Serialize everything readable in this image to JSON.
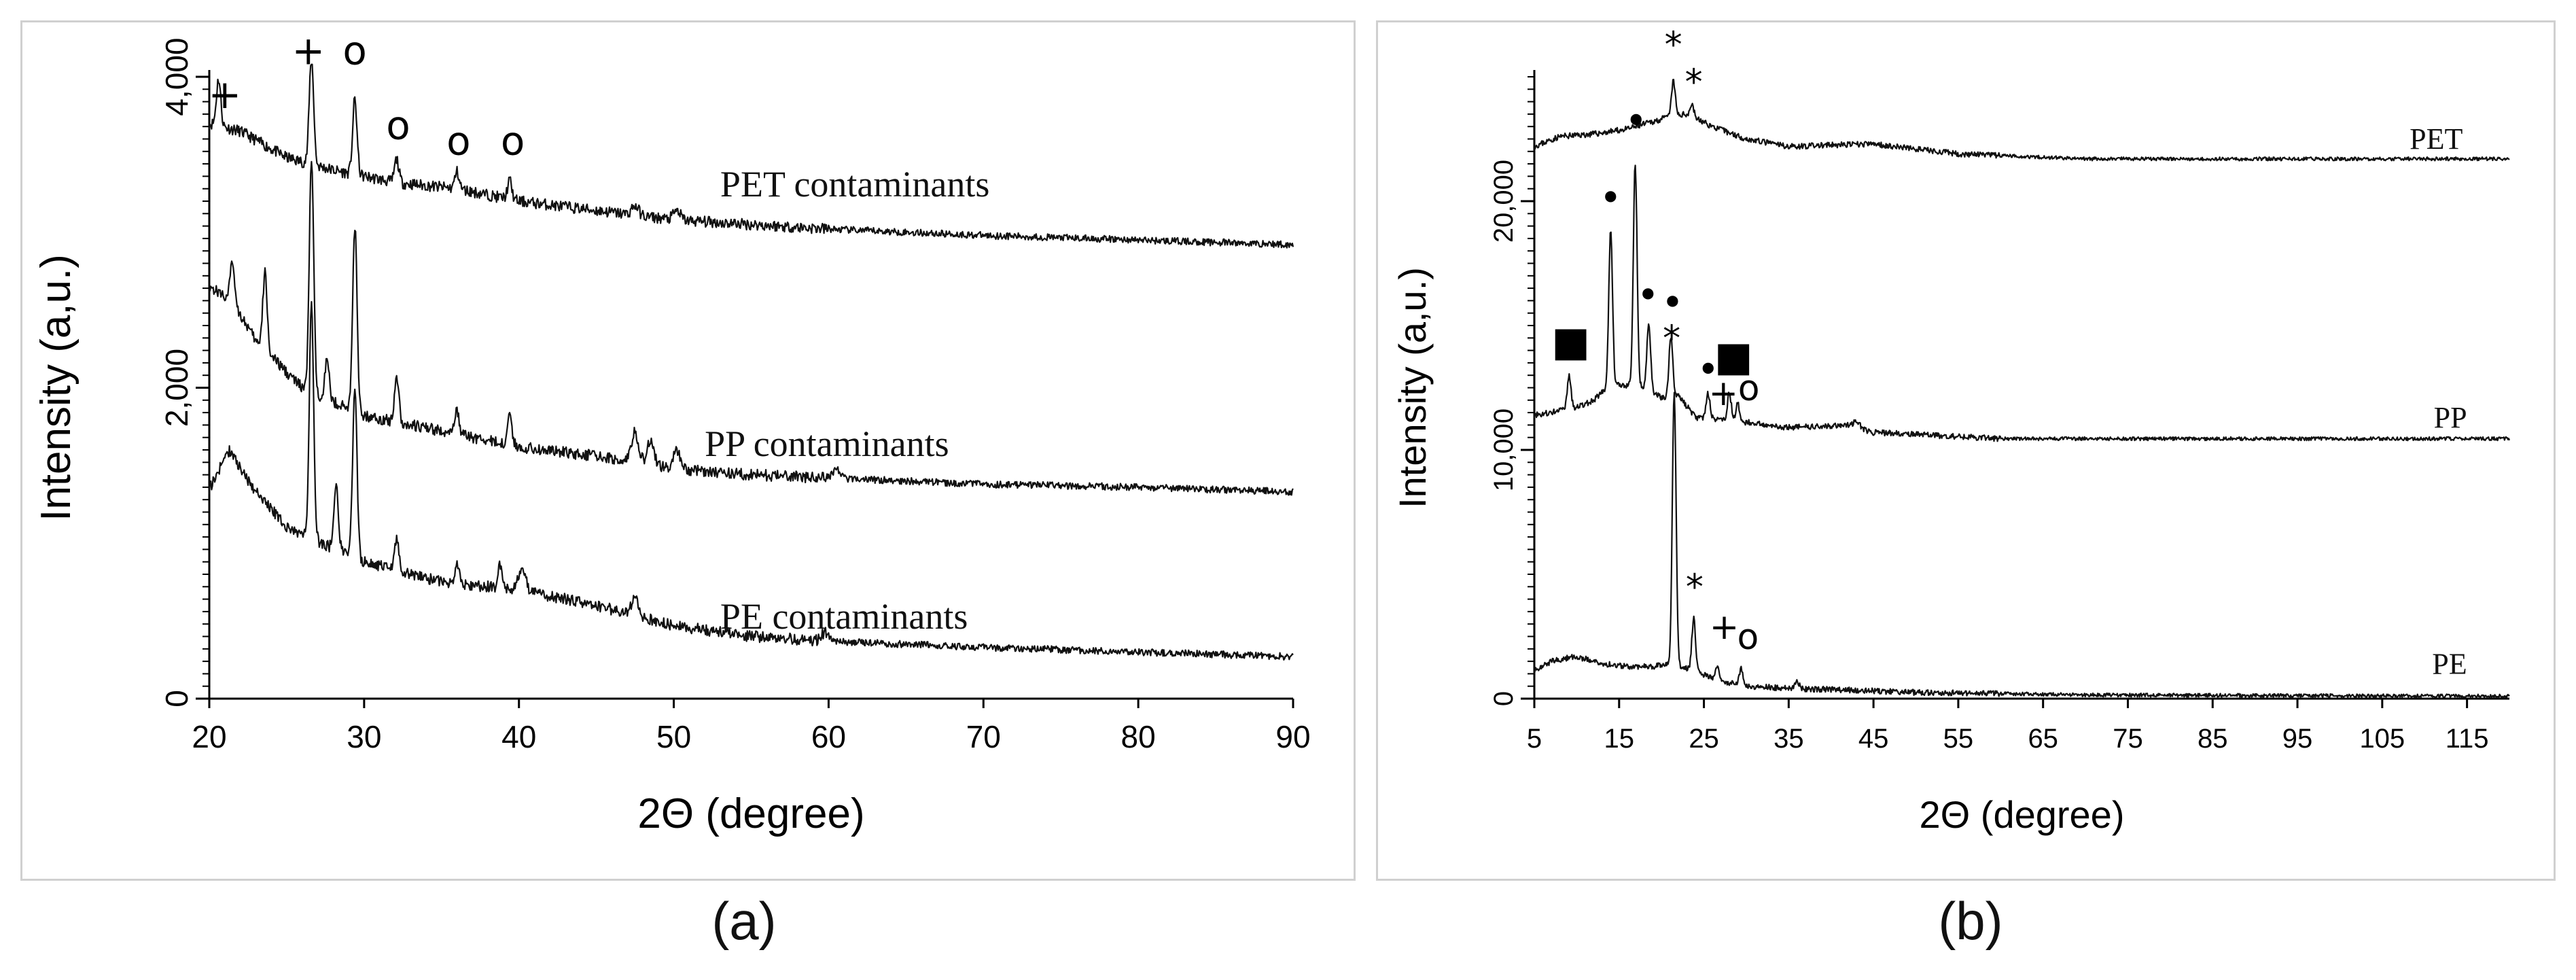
{
  "captions": [
    "(a)",
    "(b)"
  ],
  "chart_data": [
    {
      "type": "line",
      "panel": "a",
      "xlabel": "2Θ (degree)",
      "ylabel": "Intensity (a,u.)",
      "xlim": [
        20,
        90
      ],
      "ylim": [
        0,
        4000
      ],
      "xticks": [
        "20",
        "30",
        "40",
        "50",
        "60",
        "70",
        "80",
        "90"
      ],
      "yticks": [
        "0",
        "2,000",
        "4,000"
      ],
      "series": [
        {
          "name": "PET contaminants",
          "baseline": [
            [
              20,
              3700
            ],
            [
              22,
              3650
            ],
            [
              25,
              3480
            ],
            [
              28,
              3400
            ],
            [
              32,
              3320
            ],
            [
              36,
              3280
            ],
            [
              40,
              3200
            ],
            [
              45,
              3140
            ],
            [
              50,
              3080
            ],
            [
              60,
              3020
            ],
            [
              70,
              2980
            ],
            [
              80,
              2950
            ],
            [
              90,
              2920
            ]
          ],
          "peaks": [
            [
              20.6,
              300
            ],
            [
              26.6,
              700
            ],
            [
              29.4,
              480
            ],
            [
              32.1,
              150
            ],
            [
              36.0,
              110
            ],
            [
              39.4,
              120
            ],
            [
              47.5,
              60
            ],
            [
              50.2,
              60
            ]
          ],
          "label_at": [
            53,
            3230
          ]
        },
        {
          "name": "PP contaminants",
          "baseline": [
            [
              20,
              2650
            ],
            [
              21.5,
              2560
            ],
            [
              23,
              2300
            ],
            [
              26,
              2000
            ],
            [
              30,
              1820
            ],
            [
              35,
              1720
            ],
            [
              40,
              1620
            ],
            [
              45,
              1560
            ],
            [
              50,
              1480
            ],
            [
              55,
              1440
            ],
            [
              60,
              1420
            ],
            [
              70,
              1380
            ],
            [
              80,
              1360
            ],
            [
              90,
              1330
            ]
          ],
          "peaks": [
            [
              21.5,
              250
            ],
            [
              23.6,
              500
            ],
            [
              26.6,
              1500
            ],
            [
              27.6,
              250
            ],
            [
              29.4,
              1200
            ],
            [
              32.1,
              300
            ],
            [
              36.0,
              150
            ],
            [
              39.4,
              200
            ],
            [
              47.5,
              200
            ],
            [
              48.5,
              150
            ],
            [
              50.2,
              120
            ],
            [
              60.5,
              60
            ]
          ],
          "label_at": [
            52,
            1560
          ]
        },
        {
          "name": "PE contaminants",
          "baseline": [
            [
              20,
              1350
            ],
            [
              21.3,
              1600
            ],
            [
              22.5,
              1400
            ],
            [
              25,
              1100
            ],
            [
              30,
              880
            ],
            [
              35,
              750
            ],
            [
              40,
              700
            ],
            [
              45,
              600
            ],
            [
              50,
              470
            ],
            [
              55,
              400
            ],
            [
              60,
              370
            ],
            [
              70,
              330
            ],
            [
              80,
              300
            ],
            [
              90,
              270
            ]
          ],
          "peaks": [
            [
              26.6,
              1500
            ],
            [
              28.2,
              400
            ],
            [
              29.4,
              1100
            ],
            [
              32.1,
              200
            ],
            [
              36.0,
              130
            ],
            [
              38.8,
              150
            ],
            [
              40.2,
              150
            ],
            [
              47.5,
              120
            ],
            [
              59.8,
              60
            ]
          ],
          "label_at": [
            53,
            450
          ]
        }
      ],
      "annotations": [
        {
          "text": "+",
          "x": 21.0,
          "y": 3800
        },
        {
          "text": "+",
          "x": 26.4,
          "y": 4080
        },
        {
          "text": "o",
          "x": 29.4,
          "y": 4080
        },
        {
          "text": "o",
          "x": 32.2,
          "y": 3600
        },
        {
          "text": "o",
          "x": 36.1,
          "y": 3500
        },
        {
          "text": "o",
          "x": 39.6,
          "y": 3500
        }
      ]
    },
    {
      "type": "line",
      "panel": "b",
      "xlabel": "2Θ (degree)",
      "ylabel": "Intensity (a,u.)",
      "xlim": [
        5,
        120
      ],
      "ylim": [
        0,
        25000
      ],
      "xticks": [
        "5",
        "15",
        "25",
        "35",
        "45",
        "55",
        "65",
        "75",
        "85",
        "95",
        "105",
        "115"
      ],
      "yticks": [
        "0",
        "10,000",
        "20,000"
      ],
      "series": [
        {
          "name": "PET",
          "baseline": [
            [
              5,
              22200
            ],
            [
              8,
              22600
            ],
            [
              12,
              22700
            ],
            [
              16,
              22900
            ],
            [
              19,
              23200
            ],
            [
              21,
              23400
            ],
            [
              23,
              23500
            ],
            [
              26,
              23000
            ],
            [
              30,
              22500
            ],
            [
              35,
              22200
            ],
            [
              45,
              22300
            ],
            [
              55,
              21900
            ],
            [
              70,
              21700
            ],
            [
              90,
              21700
            ],
            [
              120,
              21700
            ]
          ],
          "peaks": [
            [
              21.4,
              1400
            ],
            [
              23.6,
              500
            ]
          ],
          "label_at": [
            114.5,
            22100
          ]
        },
        {
          "name": "PP",
          "baseline": [
            [
              5,
              11400
            ],
            [
              10,
              11700
            ],
            [
              12,
              12000
            ],
            [
              14,
              12600
            ],
            [
              16,
              12600
            ],
            [
              18,
              12500
            ],
            [
              20,
              12100
            ],
            [
              22,
              12200
            ],
            [
              24,
              11300
            ],
            [
              28,
              11200
            ],
            [
              35,
              10900
            ],
            [
              42,
              11000
            ],
            [
              45,
              10700
            ],
            [
              60,
              10450
            ],
            [
              80,
              10450
            ],
            [
              120,
              10450
            ]
          ],
          "peaks": [
            [
              9.1,
              1300
            ],
            [
              14.0,
              6200
            ],
            [
              16.9,
              9000
            ],
            [
              18.5,
              2700
            ],
            [
              21.1,
              2400
            ],
            [
              25.5,
              1000
            ],
            [
              28.0,
              1100
            ],
            [
              29.0,
              700
            ],
            [
              43.0,
              250
            ]
          ],
          "label_at": [
            115,
            10900
          ]
        },
        {
          "name": "PE",
          "baseline": [
            [
              5,
              1100
            ],
            [
              7,
              1500
            ],
            [
              10,
              1700
            ],
            [
              13,
              1400
            ],
            [
              16,
              1300
            ],
            [
              19,
              1300
            ],
            [
              21,
              1400
            ],
            [
              24,
              1100
            ],
            [
              27,
              700
            ],
            [
              30,
              500
            ],
            [
              36,
              400
            ],
            [
              42,
              350
            ],
            [
              50,
              250
            ],
            [
              70,
              150
            ],
            [
              120,
              100
            ]
          ],
          "peaks": [
            [
              21.5,
              11000
            ],
            [
              23.8,
              2100
            ],
            [
              26.6,
              500
            ],
            [
              29.4,
              700
            ],
            [
              36.0,
              300
            ]
          ],
          "label_at": [
            115,
            1000
          ]
        }
      ],
      "annotations": [
        {
          "text": "*",
          "x": 21.4,
          "y": 25800
        },
        {
          "text": "*",
          "x": 23.8,
          "y": 24300
        },
        {
          "text": "•",
          "x": 17.0,
          "y": 22700
        },
        {
          "text": "•",
          "x": 14.0,
          "y": 19600
        },
        {
          "text": "•",
          "x": 18.4,
          "y": 15700
        },
        {
          "text": "•",
          "x": 21.3,
          "y": 15400
        },
        {
          "text": "■",
          "x": 9.3,
          "y": 13800
        },
        {
          "text": "*",
          "x": 21.2,
          "y": 14000
        },
        {
          "text": "■",
          "x": 28.5,
          "y": 13200
        },
        {
          "text": "•",
          "x": 25.5,
          "y": 12700
        },
        {
          "text": "+",
          "x": 27.3,
          "y": 11800
        },
        {
          "text": "o",
          "x": 30.3,
          "y": 12000
        },
        {
          "text": "*",
          "x": 23.9,
          "y": 4000
        },
        {
          "text": "+",
          "x": 27.4,
          "y": 2400
        },
        {
          "text": "o",
          "x": 30.2,
          "y": 2000
        }
      ]
    }
  ]
}
